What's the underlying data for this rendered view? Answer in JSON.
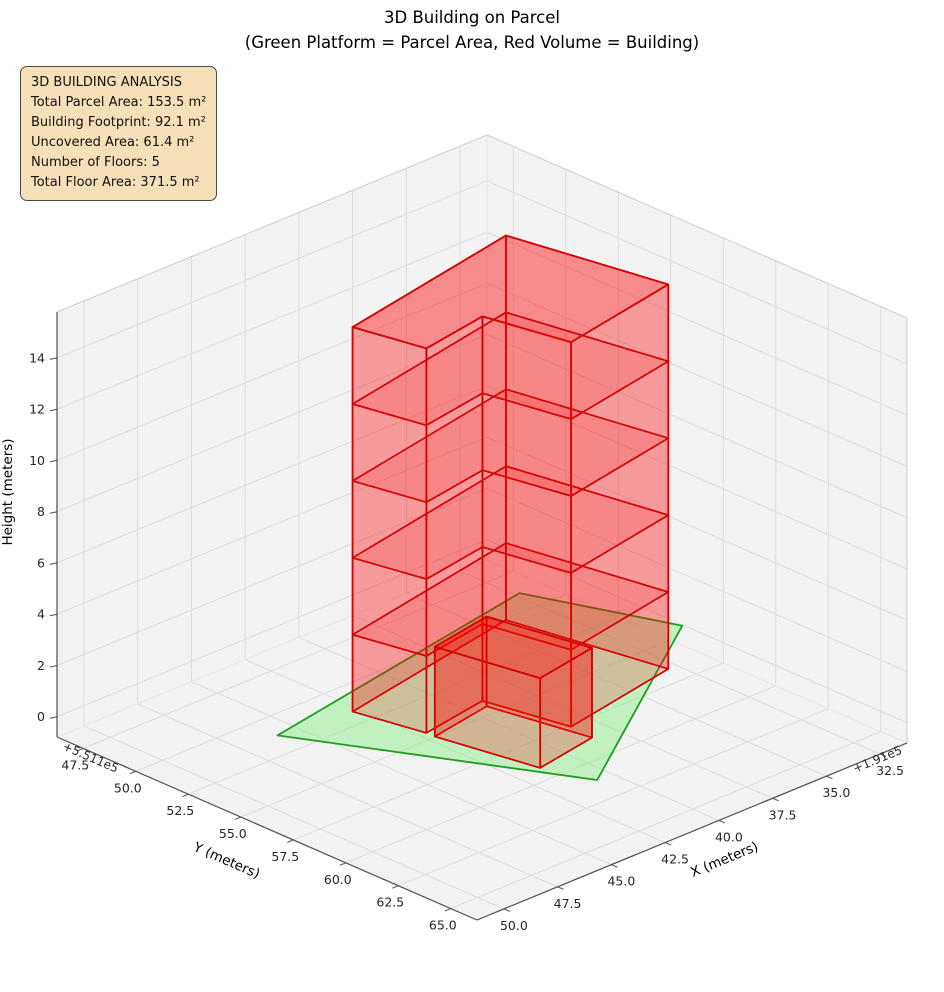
{
  "title": {
    "line1": "3D Building on Parcel",
    "line2": "(Green Platform = Parcel Area, Red Volume = Building)"
  },
  "info_box": {
    "lines": [
      "3D BUILDING ANALYSIS",
      "Total Parcel Area: 153.5 m²",
      "Building Footprint: 92.1 m²",
      "Uncovered Area: 61.4 m²",
      "Number of Floors: 5",
      "Total Floor Area: 371.5 m²"
    ]
  },
  "chart_data": {
    "type": "3d-building",
    "title": "3D Building on Parcel",
    "subtitle": "(Green Platform = Parcel Area, Red Volume = Building)",
    "axes": {
      "x": {
        "label": "X (meters)",
        "tick_values": [
          32.5,
          35.0,
          37.5,
          40.0,
          42.5,
          45.0,
          47.5,
          50.0
        ],
        "tick_labels": [
          "32.5",
          "35.0",
          "37.5",
          "40.0",
          "42.5",
          "45.0",
          "47.5",
          "50.0"
        ],
        "offset_text": "+1.91e5",
        "range": [
          31.25,
          51.25
        ]
      },
      "y": {
        "label": "Y (meters)",
        "tick_values": [
          47.5,
          50.0,
          52.5,
          55.0,
          57.5,
          60.0,
          62.5,
          65.0
        ],
        "tick_labels": [
          "47.5",
          "50.0",
          "52.5",
          "55.0",
          "57.5",
          "60.0",
          "62.5",
          "65.0"
        ],
        "offset_text": "+5.511e5",
        "range": [
          46.25,
          66.25
        ]
      },
      "z": {
        "label": "Height (meters)",
        "tick_values": [
          0,
          2,
          4,
          6,
          8,
          10,
          12,
          14
        ],
        "tick_labels": [
          "0",
          "2",
          "4",
          "6",
          "8",
          "10",
          "12",
          "14"
        ],
        "range": [
          -0.79,
          15.79
        ]
      }
    },
    "parcel": {
      "z": 0,
      "area_m2": 153.5,
      "polygon": [
        [
          33.4,
          50.0
        ],
        [
          47.0,
          52.4
        ],
        [
          41.8,
          62.3
        ],
        [
          31.3,
          55.6
        ]
      ]
    },
    "building": {
      "footprint_area_m2": 92.1,
      "uncovered_area_m2": 61.4,
      "floors": 5,
      "floor_height_m": 3,
      "height_m": 15,
      "total_floor_area_m2": 371.5,
      "floor_levels": [
        3,
        6,
        9,
        12
      ],
      "footprint": [
        [
          35.2,
          51.2
        ],
        [
          43.9,
          52.8
        ],
        [
          43.3,
          55.7
        ],
        [
          40.2,
          55.2
        ],
        [
          39.5,
          58.7
        ],
        [
          34.0,
          57.7
        ]
      ],
      "annex": {
        "height_m": 3.5,
        "footprint": [
          [
            40.4,
            55.6
          ],
          [
            43.3,
            56.1
          ],
          [
            42.5,
            60.3
          ],
          [
            39.6,
            59.8
          ]
        ]
      }
    },
    "colors": {
      "pane": "#f2f2f3",
      "grid": "#dcdcdc",
      "joint": "#e7e7e9",
      "outer_edge": "#cfcfcf",
      "axis_line": "#4d4d4d",
      "tick_text": "#262626",
      "parcel_fill": "#90ee90",
      "parcel_edge": "#1f9e1f",
      "building_fill": "#ff0000",
      "building_edge": "#d40000",
      "info_bg": "#f5deb3"
    },
    "legend_position": "none",
    "grid": true
  }
}
